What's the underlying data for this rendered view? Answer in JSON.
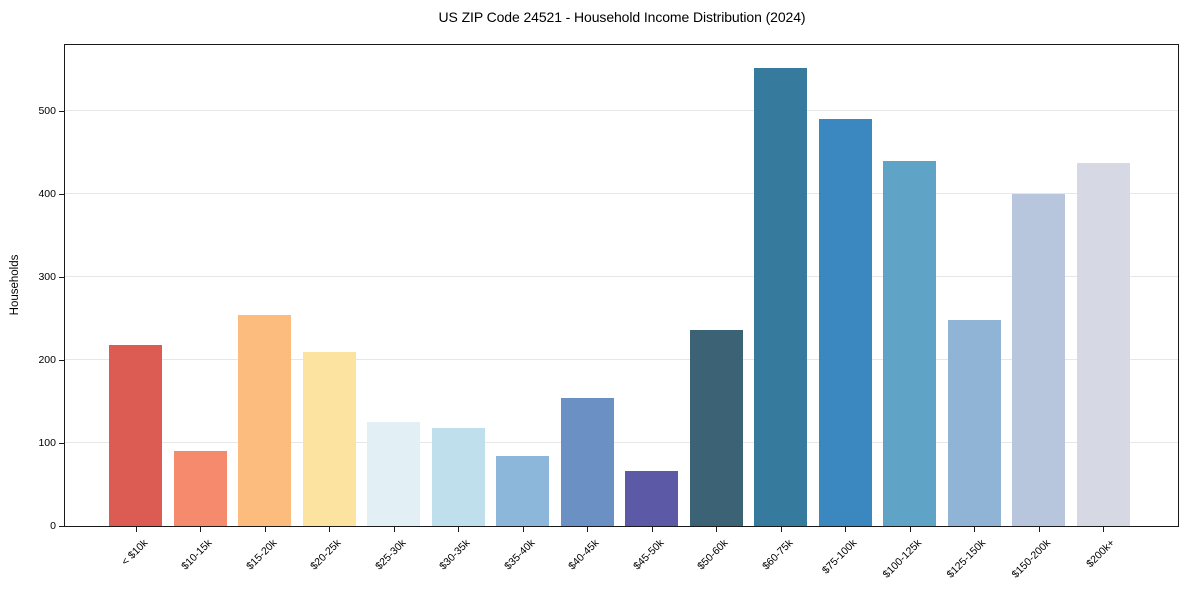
{
  "chart_data": {
    "type": "bar",
    "title": "US ZIP Code 24521 - Household Income Distribution (2024)",
    "xlabel": "",
    "ylabel": "Households",
    "categories": [
      "< $10k",
      "$10-15k",
      "$15-20k",
      "$20-25k",
      "$25-30k",
      "$30-35k",
      "$35-40k",
      "$40-45k",
      "$45-50k",
      "$50-60k",
      "$60-75k",
      "$75-100k",
      "$100-125k",
      "$125-150k",
      "$150-200k",
      "$200k+"
    ],
    "values": [
      218,
      91,
      254,
      210,
      125,
      118,
      85,
      154,
      66,
      236,
      552,
      491,
      440,
      249,
      400,
      438
    ],
    "bar_colors": [
      "#dc5b52",
      "#f58a6c",
      "#fcbc7e",
      "#fce3a0",
      "#e2eff5",
      "#bfdfec",
      "#8cb7da",
      "#6b90c4",
      "#5c5aa7",
      "#3b6275",
      "#367b9e",
      "#3a88bf",
      "#5fa4c6",
      "#90b4d6",
      "#b8c6dd",
      "#d6d8e4"
    ],
    "ylim": [
      0,
      580
    ],
    "yticks": [
      0,
      100,
      200,
      300,
      400,
      500
    ],
    "grid": "horizontal-only",
    "gridline_color": "#e7e7e7",
    "legend": "none",
    "background": "#ffffff",
    "axis_color": "#1a1a1a",
    "x_tick_label_rotation_deg": 45
  }
}
